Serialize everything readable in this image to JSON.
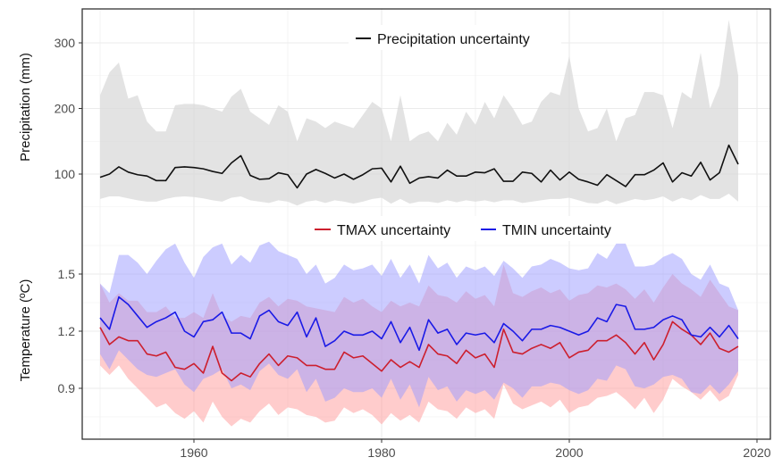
{
  "chart_data": [
    {
      "type": "area",
      "ylabel": "Precipitation (mm)",
      "yticks": [
        100,
        200,
        300
      ],
      "xticks": [
        1960,
        1980,
        2000,
        2020
      ],
      "x_start": 1950,
      "grid": true,
      "legend_placement": "top-center",
      "series": [
        {
          "name": "Precipitation uncertainty",
          "color": "#111111",
          "band_color": "#d9d9d9",
          "mean": [
            95,
            100,
            111,
            103,
            99,
            97,
            90,
            90,
            110,
            111,
            110,
            108,
            104,
            101,
            117,
            128,
            98,
            92,
            93,
            102,
            99,
            79,
            100,
            107,
            101,
            94,
            100,
            92,
            99,
            108,
            109,
            88,
            112,
            86,
            94,
            96,
            94,
            106,
            97,
            97,
            103,
            102,
            108,
            89,
            89,
            103,
            101,
            88,
            106,
            91,
            103,
            92,
            88,
            83,
            99,
            90,
            81,
            99,
            99,
            106,
            117,
            88,
            102,
            97,
            118,
            91,
            102,
            144,
            115
          ],
          "upper": [
            220,
            255,
            270,
            215,
            220,
            180,
            165,
            165,
            205,
            207,
            207,
            205,
            200,
            195,
            218,
            230,
            195,
            185,
            175,
            205,
            195,
            150,
            185,
            180,
            170,
            180,
            175,
            170,
            190,
            210,
            200,
            150,
            220,
            150,
            160,
            165,
            150,
            178,
            160,
            195,
            175,
            210,
            185,
            220,
            200,
            175,
            180,
            210,
            225,
            220,
            280,
            200,
            165,
            170,
            200,
            150,
            185,
            190,
            225,
            225,
            220,
            170,
            225,
            215,
            285,
            200,
            235,
            335,
            250
          ],
          "lower": [
            62,
            66,
            66,
            63,
            60,
            58,
            58,
            62,
            65,
            66,
            65,
            63,
            60,
            58,
            64,
            66,
            60,
            58,
            56,
            60,
            58,
            52,
            58,
            60,
            56,
            60,
            58,
            55,
            58,
            62,
            64,
            55,
            62,
            55,
            58,
            58,
            56,
            60,
            57,
            60,
            58,
            60,
            57,
            60,
            60,
            56,
            58,
            60,
            62,
            62,
            64,
            60,
            56,
            55,
            60,
            54,
            58,
            62,
            60,
            62,
            66,
            58,
            64,
            60,
            68,
            62,
            62,
            70,
            58
          ]
        }
      ]
    },
    {
      "type": "area",
      "ylabel": "Temperature (ºC)",
      "yticks": [
        0.9,
        1.2,
        1.5
      ],
      "xticks": [
        1960,
        1980,
        2000,
        2020
      ],
      "x_start": 1950,
      "grid": true,
      "legend_placement": "top-center",
      "series": [
        {
          "name": "TMAX uncertainty",
          "color": "#cc1f2e",
          "band_color": "#ff9a9a",
          "mean": [
            1.22,
            1.13,
            1.17,
            1.15,
            1.15,
            1.08,
            1.07,
            1.09,
            1.01,
            1.0,
            1.03,
            0.98,
            1.12,
            0.98,
            0.94,
            0.98,
            0.96,
            1.03,
            1.08,
            1.02,
            1.07,
            1.06,
            1.02,
            1.02,
            1.0,
            1.0,
            1.09,
            1.06,
            1.07,
            1.03,
            0.99,
            1.05,
            1.01,
            1.04,
            1.01,
            1.13,
            1.08,
            1.07,
            1.03,
            1.1,
            1.06,
            1.08,
            1.01,
            1.21,
            1.09,
            1.08,
            1.11,
            1.13,
            1.11,
            1.14,
            1.06,
            1.09,
            1.1,
            1.15,
            1.15,
            1.18,
            1.14,
            1.08,
            1.14,
            1.05,
            1.13,
            1.25,
            1.21,
            1.18,
            1.13,
            1.19,
            1.11,
            1.09,
            1.12
          ],
          "upper": [
            1.45,
            1.35,
            1.4,
            1.36,
            1.36,
            1.3,
            1.3,
            1.33,
            1.27,
            1.27,
            1.3,
            1.27,
            1.4,
            1.28,
            1.25,
            1.28,
            1.27,
            1.35,
            1.38,
            1.33,
            1.37,
            1.36,
            1.33,
            1.32,
            1.31,
            1.3,
            1.38,
            1.35,
            1.37,
            1.33,
            1.3,
            1.36,
            1.33,
            1.35,
            1.33,
            1.44,
            1.39,
            1.38,
            1.35,
            1.41,
            1.37,
            1.39,
            1.33,
            1.55,
            1.4,
            1.38,
            1.41,
            1.43,
            1.4,
            1.42,
            1.36,
            1.39,
            1.4,
            1.44,
            1.43,
            1.45,
            1.42,
            1.37,
            1.42,
            1.35,
            1.43,
            1.5,
            1.45,
            1.42,
            1.38,
            1.47,
            1.4,
            1.33,
            1.31
          ],
          "lower": [
            1.02,
            0.97,
            1.02,
            0.95,
            0.9,
            0.85,
            0.8,
            0.82,
            0.77,
            0.74,
            0.78,
            0.72,
            0.83,
            0.75,
            0.7,
            0.74,
            0.72,
            0.78,
            0.82,
            0.76,
            0.8,
            0.79,
            0.76,
            0.75,
            0.72,
            0.73,
            0.8,
            0.77,
            0.79,
            0.76,
            0.71,
            0.77,
            0.73,
            0.76,
            0.72,
            0.83,
            0.79,
            0.78,
            0.74,
            0.8,
            0.77,
            0.79,
            0.74,
            0.92,
            0.82,
            0.79,
            0.81,
            0.83,
            0.8,
            0.84,
            0.77,
            0.8,
            0.81,
            0.85,
            0.86,
            0.88,
            0.84,
            0.79,
            0.85,
            0.77,
            0.84,
            0.95,
            0.91,
            0.88,
            0.84,
            0.89,
            0.83,
            0.86,
            0.97
          ]
        },
        {
          "name": "TMIN uncertainty",
          "color": "#1a1ae6",
          "band_color": "#9a9aff",
          "mean": [
            1.27,
            1.21,
            1.38,
            1.34,
            1.28,
            1.22,
            1.25,
            1.27,
            1.3,
            1.2,
            1.17,
            1.25,
            1.26,
            1.3,
            1.19,
            1.19,
            1.16,
            1.28,
            1.31,
            1.25,
            1.23,
            1.3,
            1.17,
            1.27,
            1.12,
            1.15,
            1.2,
            1.18,
            1.18,
            1.2,
            1.16,
            1.25,
            1.14,
            1.22,
            1.1,
            1.26,
            1.19,
            1.21,
            1.13,
            1.19,
            1.18,
            1.19,
            1.14,
            1.24,
            1.2,
            1.15,
            1.21,
            1.21,
            1.23,
            1.22,
            1.2,
            1.18,
            1.2,
            1.27,
            1.25,
            1.34,
            1.33,
            1.21,
            1.21,
            1.22,
            1.26,
            1.28,
            1.26,
            1.18,
            1.17,
            1.22,
            1.17,
            1.23,
            1.16
          ],
          "upper": [
            1.45,
            1.4,
            1.6,
            1.6,
            1.56,
            1.5,
            1.57,
            1.63,
            1.66,
            1.56,
            1.48,
            1.59,
            1.64,
            1.66,
            1.55,
            1.6,
            1.56,
            1.65,
            1.67,
            1.62,
            1.6,
            1.58,
            1.5,
            1.55,
            1.45,
            1.48,
            1.55,
            1.52,
            1.53,
            1.55,
            1.49,
            1.58,
            1.48,
            1.55,
            1.45,
            1.6,
            1.53,
            1.56,
            1.48,
            1.54,
            1.52,
            1.54,
            1.49,
            1.57,
            1.53,
            1.48,
            1.54,
            1.55,
            1.58,
            1.56,
            1.53,
            1.52,
            1.53,
            1.61,
            1.58,
            1.66,
            1.66,
            1.54,
            1.54,
            1.55,
            1.59,
            1.61,
            1.58,
            1.5,
            1.47,
            1.55,
            1.45,
            1.43,
            1.31
          ],
          "lower": [
            1.08,
            1.0,
            1.1,
            1.05,
            1.0,
            0.97,
            0.96,
            0.98,
            1.0,
            0.92,
            0.88,
            0.95,
            0.97,
            1.0,
            0.9,
            0.92,
            0.89,
            0.99,
            1.03,
            0.97,
            0.95,
            1.0,
            0.88,
            0.95,
            0.83,
            0.85,
            0.9,
            0.88,
            0.88,
            0.9,
            0.85,
            0.95,
            0.84,
            0.92,
            0.8,
            0.96,
            0.89,
            0.91,
            0.83,
            0.89,
            0.87,
            0.89,
            0.84,
            0.93,
            0.9,
            0.85,
            0.91,
            0.91,
            0.93,
            0.92,
            0.89,
            0.87,
            0.89,
            0.95,
            0.94,
            1.02,
            1.0,
            0.91,
            0.9,
            0.92,
            0.96,
            0.97,
            0.95,
            0.88,
            0.87,
            0.92,
            0.87,
            0.92,
            0.99
          ]
        }
      ]
    }
  ]
}
